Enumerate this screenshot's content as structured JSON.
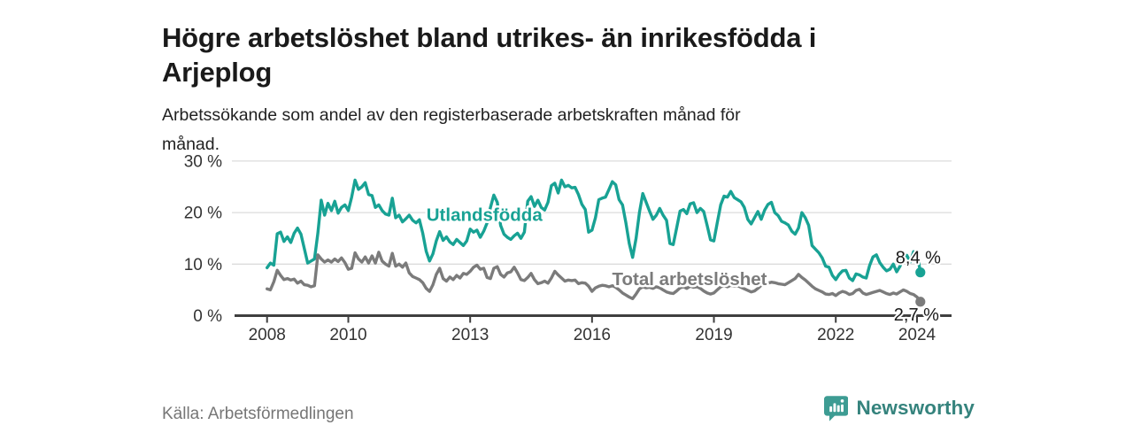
{
  "header": {
    "title_lines": [
      "Högre arbetslöshet bland utrikes- än inrikesfödda i",
      "Arjeplog"
    ],
    "subtitle_lines": [
      "Arbetssökande som andel av den registerbaserade arbetskraften månad för",
      "månad."
    ]
  },
  "footer": {
    "source": "Källa: Arbetsförmedlingen",
    "brand": "Newsworthy"
  },
  "colors": {
    "teal_series": "#18a294",
    "gray_series": "#7b7b7b",
    "axis": "#3f3f3f",
    "grid": "#dcdcdc",
    "tick_text": "#333333",
    "end_label_text": "#1a1a1a",
    "logo_icon": "#3d9c93",
    "logo_text": "#35837d"
  },
  "chart_data": {
    "type": "line",
    "title": "Högre arbetslöshet bland utrikes- än inrikesfödda i Arjeplog",
    "subtitle": "Arbetssökande som andel av den registerbaserade arbetskraften månad för månad.",
    "xlabel": "",
    "ylabel": "",
    "grid": "horizontal",
    "legend_position": "inline-labels",
    "xlim": [
      2007.2,
      2024.85
    ],
    "ylim": [
      0,
      31
    ],
    "x_ticks": [
      2008,
      2010,
      2013,
      2016,
      2019,
      2022,
      2024
    ],
    "x_tick_labels": [
      "2008",
      "2010",
      "2013",
      "2016",
      "2019",
      "2022",
      "2024"
    ],
    "y_ticks": [
      0,
      10,
      20,
      30
    ],
    "y_tick_labels": [
      "0 %",
      "10 %",
      "20 %",
      "30 %"
    ],
    "x_start_year": 2008,
    "x_step_years": 0.08333,
    "series": [
      {
        "name": "Utlandsfödda",
        "color": "#18a294",
        "end_label": "8,4 %",
        "end_value": 8.4,
        "label_at": {
          "x": 2013.35,
          "y": 19.6
        },
        "values": [
          9.3,
          10.2,
          9.8,
          15.9,
          16.2,
          14.4,
          15.3,
          14.2,
          16.0,
          17.0,
          15.8,
          13.0,
          10.2,
          10.6,
          11.0,
          16.0,
          22.4,
          19.5,
          21.8,
          20.4,
          22.2,
          19.9,
          21.0,
          21.5,
          20.4,
          23.0,
          26.3,
          24.5,
          25.0,
          25.8,
          23.5,
          23.3,
          21.0,
          21.5,
          20.4,
          19.7,
          19.5,
          22.8,
          19.0,
          19.5,
          18.2,
          18.8,
          19.5,
          18.5,
          18.0,
          18.6,
          16.0,
          12.5,
          10.6,
          12.0,
          14.5,
          16.3,
          14.6,
          15.3,
          14.3,
          13.8,
          14.8,
          14.2,
          13.6,
          14.5,
          16.8,
          16.2,
          16.6,
          15.2,
          16.4,
          18.0,
          21.0,
          23.4,
          22.0,
          17.5,
          15.8,
          15.2,
          14.8,
          15.5,
          16.0,
          15.0,
          16.2,
          22.2,
          23.1,
          21.2,
          22.4,
          21.0,
          20.5,
          22.0,
          25.2,
          25.7,
          23.8,
          26.3,
          25.0,
          25.3,
          24.8,
          24.9,
          23.5,
          21.6,
          20.6,
          16.2,
          16.6,
          19.0,
          22.5,
          22.8,
          23.0,
          24.5,
          26.0,
          25.4,
          22.5,
          21.5,
          18.0,
          14.0,
          11.3,
          15.0,
          20.0,
          23.7,
          22.0,
          20.3,
          18.7,
          19.5,
          20.8,
          19.5,
          18.5,
          14.0,
          13.8,
          17.0,
          20.3,
          20.6,
          19.8,
          21.7,
          21.9,
          20.0,
          20.8,
          20.2,
          17.5,
          14.7,
          14.5,
          18.0,
          21.5,
          23.2,
          23.0,
          24.1,
          22.9,
          22.5,
          22.1,
          21.0,
          18.7,
          17.8,
          19.0,
          20.2,
          18.7,
          20.5,
          21.6,
          22.0,
          20.0,
          19.4,
          18.3,
          18.0,
          17.6,
          16.4,
          15.8,
          17.0,
          20.0,
          19.0,
          17.5,
          13.6,
          12.9,
          12.2,
          11.2,
          9.6,
          9.4,
          7.8,
          7.0,
          8.0,
          8.7,
          8.8,
          7.3,
          6.8,
          8.1,
          7.9,
          7.5,
          7.3,
          9.7,
          11.4,
          11.8,
          10.3,
          9.4,
          8.7,
          9.0,
          10.0,
          8.5,
          9.6,
          11.4,
          11.7,
          10.4,
          12.4,
          12.2,
          8.4
        ]
      },
      {
        "name": "Total arbetslöshet",
        "color": "#7b7b7b",
        "end_label": "2,7 %",
        "end_value": 2.7,
        "label_at": {
          "x": 2018.4,
          "y": 7.1
        },
        "values": [
          5.2,
          5.0,
          6.6,
          8.8,
          7.8,
          7.0,
          7.2,
          6.9,
          7.1,
          6.3,
          6.7,
          6.0,
          5.9,
          5.6,
          5.8,
          11.8,
          11.0,
          10.4,
          10.8,
          10.4,
          11.0,
          10.5,
          11.2,
          10.3,
          9.0,
          9.2,
          12.2,
          11.0,
          10.4,
          11.4,
          10.2,
          11.6,
          10.2,
          12.3,
          10.6,
          10.0,
          9.6,
          12.1,
          9.6,
          10.0,
          9.4,
          10.2,
          8.3,
          7.6,
          7.3,
          7.0,
          6.4,
          5.3,
          4.7,
          6.0,
          8.0,
          9.2,
          7.2,
          6.7,
          7.5,
          7.0,
          7.8,
          7.3,
          8.2,
          8.0,
          8.6,
          9.4,
          9.8,
          9.0,
          9.2,
          7.4,
          7.2,
          9.2,
          9.5,
          8.0,
          7.5,
          8.3,
          8.5,
          9.4,
          8.3,
          7.0,
          6.8,
          7.4,
          8.2,
          7.0,
          6.2,
          6.4,
          6.7,
          6.3,
          7.3,
          8.6,
          7.9,
          7.3,
          6.7,
          6.9,
          6.8,
          6.9,
          6.2,
          6.4,
          6.3,
          5.7,
          4.7,
          5.4,
          5.7,
          5.9,
          5.8,
          5.6,
          5.8,
          5.5,
          5.0,
          4.4,
          4.0,
          3.6,
          3.3,
          4.2,
          5.2,
          5.6,
          5.4,
          5.5,
          5.3,
          5.6,
          5.4,
          5.0,
          4.6,
          4.4,
          4.3,
          4.8,
          5.4,
          5.6,
          5.3,
          5.7,
          5.5,
          5.6,
          5.3,
          4.8,
          4.4,
          4.2,
          4.4,
          5.0,
          5.6,
          5.8,
          5.6,
          5.9,
          5.7,
          5.8,
          5.5,
          5.2,
          4.9,
          4.6,
          4.8,
          5.3,
          5.9,
          6.2,
          6.3,
          6.5,
          6.4,
          6.2,
          6.1,
          6.0,
          6.4,
          6.8,
          7.2,
          8.0,
          7.4,
          6.9,
          6.3,
          5.7,
          5.2,
          4.9,
          4.6,
          4.2,
          4.1,
          4.3,
          3.9,
          4.4,
          4.7,
          4.5,
          4.1,
          4.3,
          4.9,
          5.1,
          4.4,
          4.1,
          4.3,
          4.5,
          4.7,
          4.9,
          4.6,
          4.3,
          4.1,
          4.4,
          4.2,
          4.6,
          5.0,
          4.7,
          4.3,
          4.1,
          3.6,
          2.7
        ]
      }
    ]
  }
}
